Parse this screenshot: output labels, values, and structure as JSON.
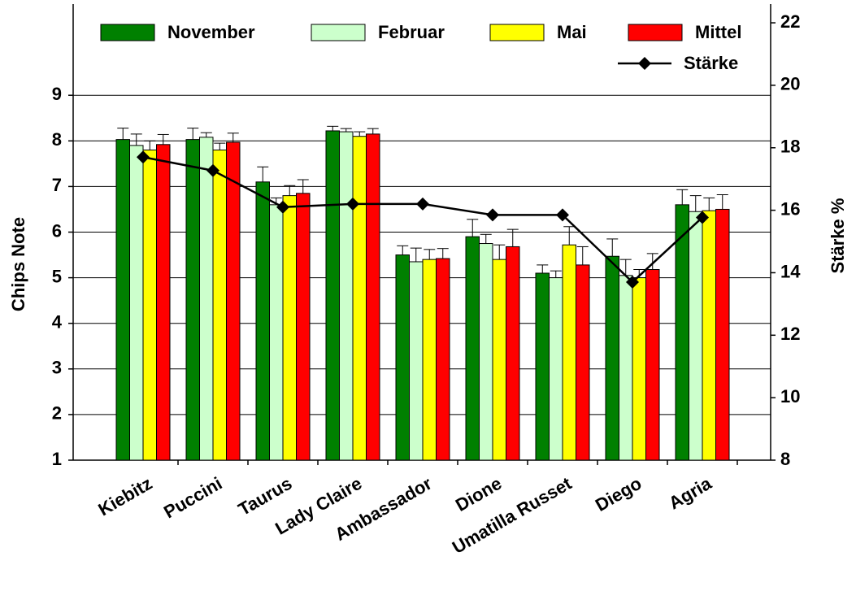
{
  "chart_data": {
    "type": "bar",
    "categories": [
      "Kiebitz",
      "Puccini",
      "Taurus",
      "Lady Claire",
      "Ambassador",
      "Dione",
      "Umatilla Russet",
      "Diego",
      "Agria"
    ],
    "ylabel": "Chips Note",
    "y2label": "Stärke %",
    "ylim": [
      1,
      11
    ],
    "yticks": [
      1,
      2,
      3,
      4,
      5,
      6,
      7,
      8,
      9
    ],
    "y2lim": [
      8,
      22.6
    ],
    "y2ticks": [
      8,
      10,
      12,
      14,
      16,
      18,
      20,
      22
    ],
    "grid": true,
    "series": [
      {
        "name": "November",
        "color": "#008000",
        "values": [
          8.03,
          8.03,
          7.1,
          8.22,
          5.5,
          5.9,
          5.1,
          5.47,
          6.6
        ],
        "errors": [
          0.25,
          0.25,
          0.33,
          0.1,
          0.2,
          0.38,
          0.18,
          0.38,
          0.33
        ]
      },
      {
        "name": "Februar",
        "color": "#ccffcc",
        "values": [
          7.9,
          8.08,
          6.6,
          8.2,
          5.35,
          5.75,
          5.0,
          5.05,
          6.45
        ],
        "errors": [
          0.25,
          0.1,
          0.15,
          0.07,
          0.3,
          0.2,
          0.15,
          0.35,
          0.35
        ]
      },
      {
        "name": "Mai",
        "color": "#ffff00",
        "values": [
          7.8,
          7.8,
          6.8,
          8.1,
          5.4,
          5.4,
          5.72,
          5.0,
          6.47
        ],
        "errors": [
          0.2,
          0.15,
          0.22,
          0.1,
          0.22,
          0.32,
          0.4,
          0.18,
          0.28
        ]
      },
      {
        "name": "Mittel",
        "color": "#ff0000",
        "values": [
          7.92,
          7.97,
          6.85,
          8.15,
          5.42,
          5.68,
          5.28,
          5.18,
          6.5
        ],
        "errors": [
          0.22,
          0.2,
          0.3,
          0.12,
          0.22,
          0.38,
          0.4,
          0.35,
          0.32
        ]
      },
      {
        "name": "Stärke",
        "color": "#000000",
        "type": "line",
        "axis": "y2",
        "values": [
          17.7,
          17.27,
          16.1,
          16.2,
          16.2,
          15.85,
          15.85,
          13.7,
          15.77
        ]
      }
    ]
  }
}
